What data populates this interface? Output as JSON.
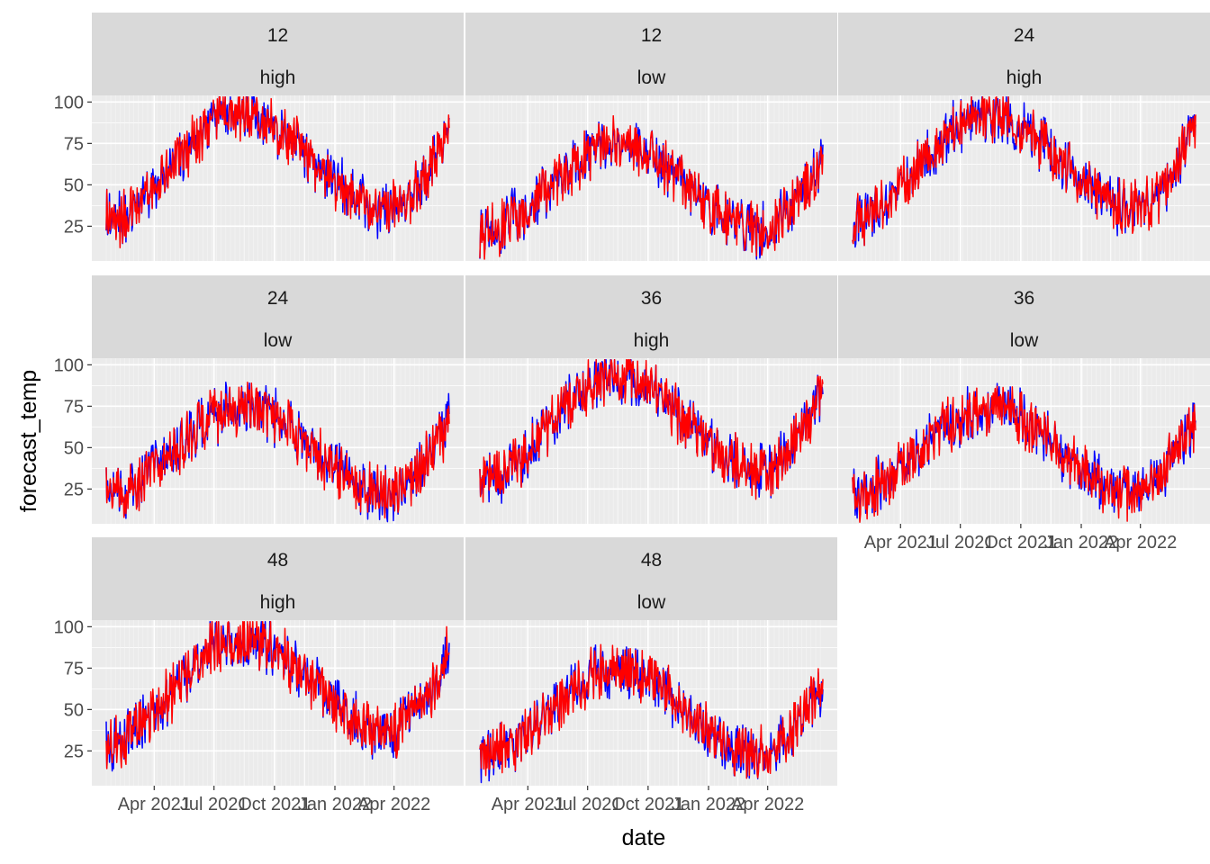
{
  "chart_data": {
    "type": "line",
    "layout": "facet_wrap",
    "xlabel": "date",
    "ylabel": "forecast_temp",
    "x_ticks": [
      "Apr 2021",
      "Jul 2021",
      "Oct 2021",
      "Jan 2022",
      "Apr 2022"
    ],
    "x_tick_dates": [
      "2021-04-01",
      "2021-07-01",
      "2021-10-01",
      "2022-01-01",
      "2022-04-01"
    ],
    "x_range": [
      "2021-01-18",
      "2022-06-24"
    ],
    "y_ticks": [
      25,
      50,
      75,
      100
    ],
    "ylim": [
      4,
      104
    ],
    "grid": true,
    "series_colors": [
      "#0000ff",
      "#ff0000"
    ],
    "panels": [
      {
        "hours": "12",
        "type": "high",
        "baseline": [
          29,
          31,
          40,
          50,
          62,
          75,
          86,
          91,
          93,
          90,
          84,
          76,
          66,
          56,
          47,
          40,
          35,
          37,
          47,
          63,
          86
        ],
        "noise": 6
      },
      {
        "hours": "12",
        "type": "low",
        "baseline": [
          21,
          24,
          30,
          38,
          48,
          58,
          67,
          73,
          75,
          73,
          67,
          59,
          49,
          40,
          32,
          25,
          22,
          24,
          34,
          48,
          66
        ],
        "noise": 6
      },
      {
        "hours": "24",
        "type": "high",
        "baseline": [
          29,
          31,
          40,
          50,
          62,
          75,
          86,
          91,
          93,
          90,
          84,
          76,
          66,
          56,
          47,
          40,
          35,
          37,
          47,
          63,
          86
        ],
        "noise": 6
      },
      {
        "hours": "24",
        "type": "low",
        "baseline": [
          21,
          24,
          30,
          38,
          48,
          58,
          67,
          73,
          75,
          73,
          67,
          59,
          49,
          40,
          32,
          25,
          22,
          24,
          34,
          48,
          66
        ],
        "noise": 6
      },
      {
        "hours": "36",
        "type": "high",
        "baseline": [
          29,
          31,
          40,
          50,
          62,
          75,
          86,
          91,
          93,
          90,
          84,
          76,
          66,
          56,
          47,
          40,
          35,
          37,
          47,
          63,
          86
        ],
        "noise": 6
      },
      {
        "hours": "36",
        "type": "low",
        "baseline": [
          21,
          24,
          30,
          38,
          48,
          58,
          67,
          73,
          75,
          73,
          67,
          59,
          49,
          40,
          32,
          25,
          22,
          24,
          34,
          48,
          66
        ],
        "noise": 6
      },
      {
        "hours": "48",
        "type": "high",
        "baseline": [
          29,
          31,
          40,
          50,
          62,
          75,
          86,
          91,
          93,
          90,
          84,
          76,
          66,
          56,
          47,
          40,
          35,
          37,
          47,
          63,
          86
        ],
        "noise": 6
      },
      {
        "hours": "48",
        "type": "low",
        "baseline": [
          21,
          24,
          30,
          38,
          48,
          58,
          67,
          73,
          75,
          73,
          67,
          59,
          49,
          40,
          32,
          25,
          22,
          24,
          34,
          48,
          66
        ],
        "noise": 6
      }
    ]
  }
}
